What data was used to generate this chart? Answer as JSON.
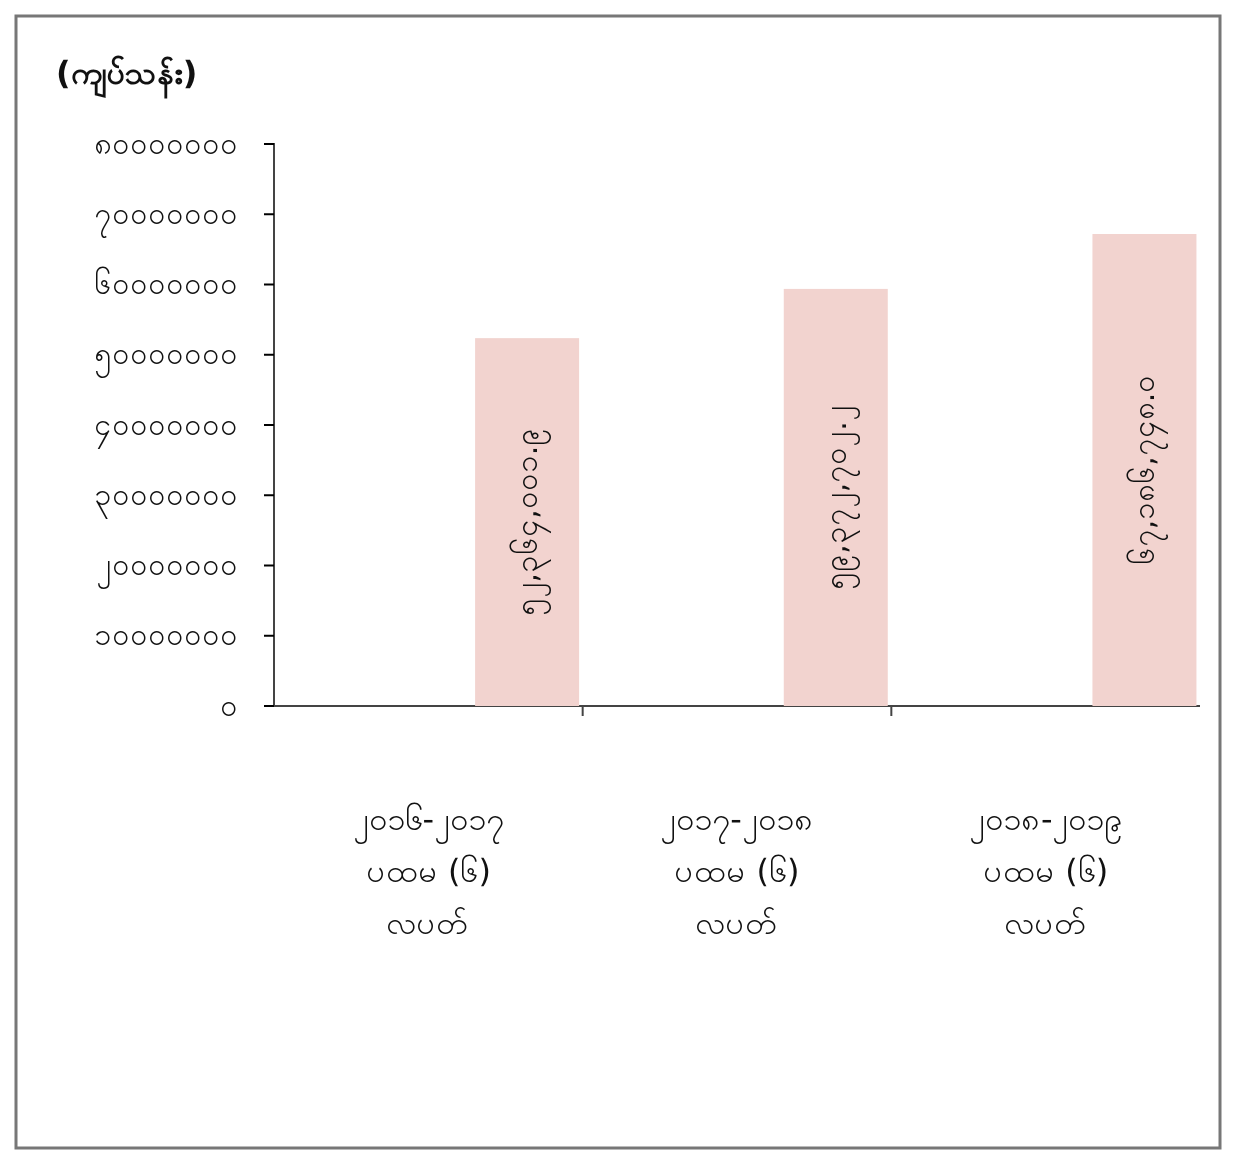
{
  "chart_data": {
    "type": "bar",
    "ylabel": "(ကျပ်သန်း)",
    "categories": [
      "၂၀၁၆-၂၀၁၇\nပထမ (၆)\nလပတ်",
      "၂၀၁၇-၂၀၁၈\nပထမ (၆)\nလပတ်",
      "၂၀၁၈-၂၀၁၉\nပထမ (၆)\nလပတ်"
    ],
    "values": [
      52364001.9,
      59372702.2,
      67186748.0
    ],
    "value_labels": [
      "၅၂,၃၆၄,၀၀၁.၉",
      "၅၉,၃၇၂,၇၀၂.၂",
      "၆၇,၁၈၆,၇၄၈.၀"
    ],
    "color": "#f2d3cf",
    "ylim": [
      0,
      80000000
    ],
    "yticks": [
      {
        "value": 0,
        "label": "၀"
      },
      {
        "value": 10000000,
        "label": "၁၀၀၀၀၀၀၀"
      },
      {
        "value": 20000000,
        "label": "၂၀၀၀၀၀၀၀"
      },
      {
        "value": 30000000,
        "label": "၃၀၀၀၀၀၀၀"
      },
      {
        "value": 40000000,
        "label": "၄၀၀၀၀၀၀၀"
      },
      {
        "value": 50000000,
        "label": "၅၀၀၀၀၀၀၀"
      },
      {
        "value": 60000000,
        "label": "၆၀၀၀၀၀၀၀"
      },
      {
        "value": 70000000,
        "label": "၇၀၀၀၀၀၀၀"
      },
      {
        "value": 80000000,
        "label": "၈၀၀၀၀၀၀၀"
      }
    ],
    "grid": false
  }
}
